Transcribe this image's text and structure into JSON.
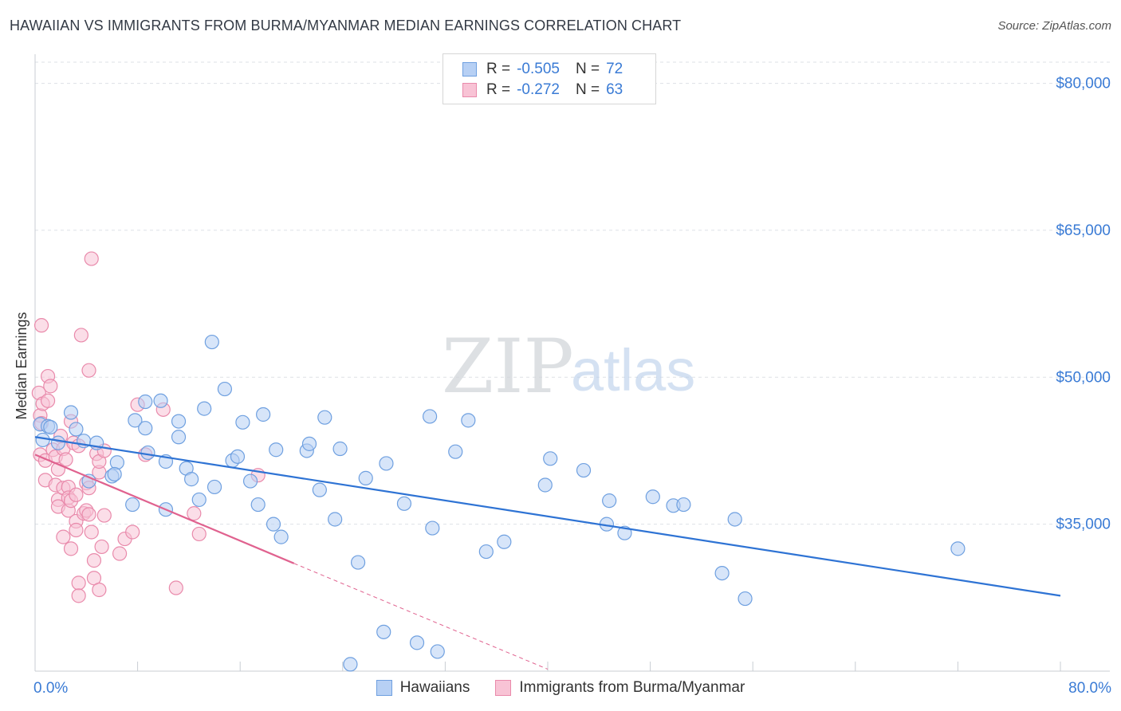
{
  "title": "HAWAIIAN VS IMMIGRANTS FROM BURMA/MYANMAR MEDIAN EARNINGS CORRELATION CHART",
  "source": "Source: ZipAtlas.com",
  "watermark": {
    "zip": "ZIP",
    "atlas": "atlas"
  },
  "legend": {
    "rows": [
      {
        "r_label": "R =",
        "r_value": "-0.505",
        "n_label": "N =",
        "n_value": "72"
      },
      {
        "r_label": "R =",
        "r_value": "-0.272",
        "n_label": "N =",
        "n_value": "63"
      }
    ]
  },
  "bottom_legend": {
    "series1": "Hawaiians",
    "series2": "Immigrants from Burma/Myanmar"
  },
  "colors": {
    "blue_fill": "#b7d0f4",
    "blue_stroke": "#6fa0e0",
    "blue_line": "#2e73d4",
    "pink_fill": "#f8c3d5",
    "pink_stroke": "#e98aab",
    "pink_line": "#e0628f",
    "axis_text": "#3a7bd5",
    "grid": "#dde1e6"
  },
  "chart_data": {
    "type": "scatter",
    "title": "HAWAIIAN VS IMMIGRANTS FROM BURMA/MYANMAR MEDIAN EARNINGS CORRELATION CHART",
    "xlabel": "",
    "ylabel": "Median Earnings",
    "xlim": [
      0,
      80
    ],
    "ylim": [
      20000,
      82000
    ],
    "y_ticks": [
      35000,
      50000,
      65000,
      80000
    ],
    "y_tick_labels": [
      "$35,000",
      "$50,000",
      "$65,000",
      "$80,000"
    ],
    "x_tick_labels": [
      "0.0%",
      "80.0%"
    ],
    "grid": true,
    "series": [
      {
        "name": "Hawaiians",
        "r": -0.505,
        "n": 72,
        "trend": {
          "x": [
            0,
            80
          ],
          "y": [
            43900,
            27700
          ]
        },
        "points": [
          [
            0.4,
            45200
          ],
          [
            0.6,
            43600
          ],
          [
            1.0,
            45000
          ],
          [
            1.2,
            44900
          ],
          [
            1.8,
            43300
          ],
          [
            2.8,
            46400
          ],
          [
            3.2,
            44700
          ],
          [
            3.8,
            43500
          ],
          [
            4.2,
            39400
          ],
          [
            4.8,
            43300
          ],
          [
            6.0,
            39900
          ],
          [
            6.4,
            41300
          ],
          [
            6.2,
            40100
          ],
          [
            7.8,
            45600
          ],
          [
            8.6,
            47500
          ],
          [
            7.6,
            37000
          ],
          [
            8.8,
            42300
          ],
          [
            8.6,
            44800
          ],
          [
            9.8,
            47600
          ],
          [
            10.2,
            41400
          ],
          [
            10.2,
            36500
          ],
          [
            11.2,
            43900
          ],
          [
            11.2,
            45500
          ],
          [
            11.8,
            40700
          ],
          [
            12.2,
            39600
          ],
          [
            12.8,
            37500
          ],
          [
            13.2,
            46800
          ],
          [
            13.8,
            53600
          ],
          [
            14.0,
            38800
          ],
          [
            14.8,
            48800
          ],
          [
            15.4,
            41500
          ],
          [
            15.8,
            41900
          ],
          [
            16.2,
            45400
          ],
          [
            16.8,
            39400
          ],
          [
            17.4,
            37000
          ],
          [
            17.8,
            46200
          ],
          [
            18.6,
            35000
          ],
          [
            18.8,
            42600
          ],
          [
            19.2,
            33700
          ],
          [
            21.2,
            42500
          ],
          [
            21.4,
            43200
          ],
          [
            22.2,
            38500
          ],
          [
            22.6,
            45900
          ],
          [
            23.4,
            35500
          ],
          [
            23.8,
            42700
          ],
          [
            25.2,
            31100
          ],
          [
            25.8,
            39700
          ],
          [
            27.2,
            24000
          ],
          [
            27.4,
            41200
          ],
          [
            28.8,
            37100
          ],
          [
            29.8,
            22900
          ],
          [
            30.8,
            46000
          ],
          [
            31.0,
            34600
          ],
          [
            31.4,
            22000
          ],
          [
            32.8,
            42400
          ],
          [
            33.8,
            45600
          ],
          [
            35.2,
            32200
          ],
          [
            36.6,
            33200
          ],
          [
            39.8,
            39000
          ],
          [
            40.2,
            41700
          ],
          [
            42.8,
            40500
          ],
          [
            44.6,
            35000
          ],
          [
            44.8,
            37400
          ],
          [
            46.0,
            34100
          ],
          [
            48.2,
            37800
          ],
          [
            49.8,
            36900
          ],
          [
            50.6,
            37000
          ],
          [
            53.6,
            30000
          ],
          [
            54.6,
            35500
          ],
          [
            55.4,
            27400
          ],
          [
            72.0,
            32500
          ],
          [
            24.6,
            20700
          ]
        ]
      },
      {
        "name": "Immigrants from Burma/Myanmar",
        "r": -0.272,
        "n": 63,
        "trend": {
          "x": [
            0,
            20.2
          ],
          "y": [
            42100,
            31000
          ]
        },
        "trend_dashed": {
          "x": [
            20.2,
            40
          ],
          "y": [
            31000,
            20200
          ]
        },
        "points": [
          [
            0.3,
            48400
          ],
          [
            0.4,
            46100
          ],
          [
            0.5,
            45300
          ],
          [
            0.4,
            42100
          ],
          [
            0.5,
            55300
          ],
          [
            0.6,
            47300
          ],
          [
            0.8,
            41500
          ],
          [
            0.8,
            39500
          ],
          [
            1.0,
            50100
          ],
          [
            1.0,
            47600
          ],
          [
            1.2,
            49100
          ],
          [
            1.4,
            42600
          ],
          [
            1.6,
            41900
          ],
          [
            1.6,
            39000
          ],
          [
            1.8,
            40600
          ],
          [
            1.8,
            37500
          ],
          [
            1.8,
            36800
          ],
          [
            2.0,
            44000
          ],
          [
            2.2,
            42700
          ],
          [
            2.2,
            38700
          ],
          [
            2.2,
            33700
          ],
          [
            2.6,
            38800
          ],
          [
            2.6,
            36400
          ],
          [
            2.6,
            37700
          ],
          [
            2.8,
            37400
          ],
          [
            2.8,
            32500
          ],
          [
            2.8,
            45500
          ],
          [
            3.0,
            43300
          ],
          [
            3.2,
            38000
          ],
          [
            3.2,
            35300
          ],
          [
            3.2,
            34400
          ],
          [
            3.4,
            29000
          ],
          [
            3.4,
            27700
          ],
          [
            3.6,
            54300
          ],
          [
            3.8,
            36100
          ],
          [
            4.0,
            39200
          ],
          [
            4.0,
            36400
          ],
          [
            4.2,
            38700
          ],
          [
            4.2,
            36000
          ],
          [
            4.4,
            34200
          ],
          [
            4.6,
            31300
          ],
          [
            4.6,
            29500
          ],
          [
            4.8,
            42200
          ],
          [
            5.0,
            40300
          ],
          [
            5.0,
            41400
          ],
          [
            5.0,
            28300
          ],
          [
            5.2,
            32700
          ],
          [
            5.4,
            35900
          ],
          [
            5.4,
            42500
          ],
          [
            4.2,
            50700
          ],
          [
            4.4,
            62100
          ],
          [
            6.6,
            32000
          ],
          [
            7.0,
            33500
          ],
          [
            7.6,
            34200
          ],
          [
            8.0,
            47200
          ],
          [
            8.6,
            42100
          ],
          [
            10.0,
            46700
          ],
          [
            11.0,
            28500
          ],
          [
            12.4,
            36100
          ],
          [
            12.8,
            34000
          ],
          [
            17.4,
            40000
          ],
          [
            3.4,
            43000
          ],
          [
            2.4,
            41600
          ]
        ]
      }
    ]
  }
}
